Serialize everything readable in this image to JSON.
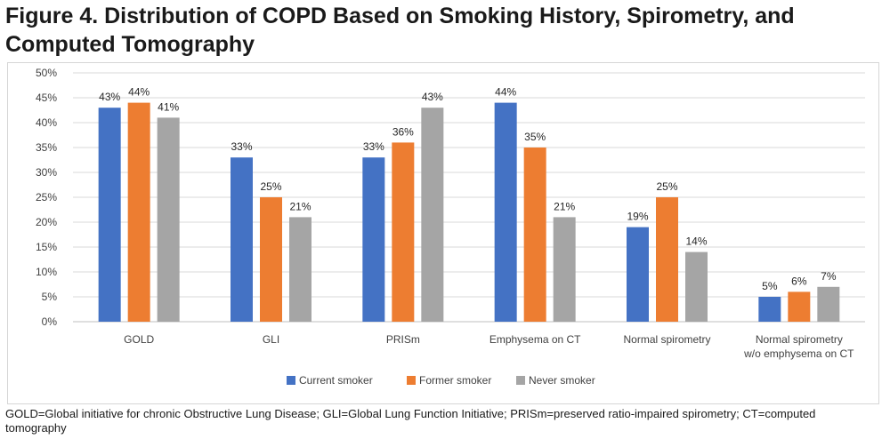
{
  "title": "Figure 4. Distribution of COPD Based on Smoking History, Spirometry, and Computed Tomography",
  "footnote": "GOLD=Global initiative for chronic Obstructive Lung Disease; GLI=Global Lung Function Initiative; PRISm=preserved ratio-impaired spirometry; CT=computed tomography",
  "chart_data": {
    "type": "bar",
    "categories": [
      "GOLD",
      "GLI",
      "PRISm",
      "Emphysema on CT",
      "Normal spirometry",
      "Normal spirometry w/o emphysema on CT"
    ],
    "category_lines": [
      [
        "GOLD"
      ],
      [
        "GLI"
      ],
      [
        "PRISm"
      ],
      [
        "Emphysema on CT"
      ],
      [
        "Normal spirometry"
      ],
      [
        "Normal spirometry",
        "w/o emphysema on CT"
      ]
    ],
    "series": [
      {
        "name": "Current smoker",
        "color": "#4472C4",
        "values": [
          43,
          33,
          33,
          44,
          19,
          5
        ],
        "labels": [
          "43%",
          "33%",
          "33%",
          "44%",
          "19%",
          "5%"
        ]
      },
      {
        "name": "Former smoker",
        "color": "#ED7D31",
        "values": [
          44,
          25,
          36,
          35,
          25,
          6
        ],
        "labels": [
          "44%",
          "25%",
          "36%",
          "35%",
          "25%",
          "6%"
        ]
      },
      {
        "name": "Never smoker",
        "color": "#A5A5A5",
        "values": [
          41,
          21,
          43,
          21,
          14,
          7
        ],
        "labels": [
          "41%",
          "21%",
          "43%",
          "21%",
          "14%",
          "7%"
        ]
      }
    ],
    "yticks": [
      "0%",
      "5%",
      "10%",
      "15%",
      "20%",
      "25%",
      "30%",
      "35%",
      "40%",
      "45%",
      "50%"
    ],
    "ylim": [
      0,
      50
    ],
    "grid": true,
    "legend_position": "bottom"
  }
}
